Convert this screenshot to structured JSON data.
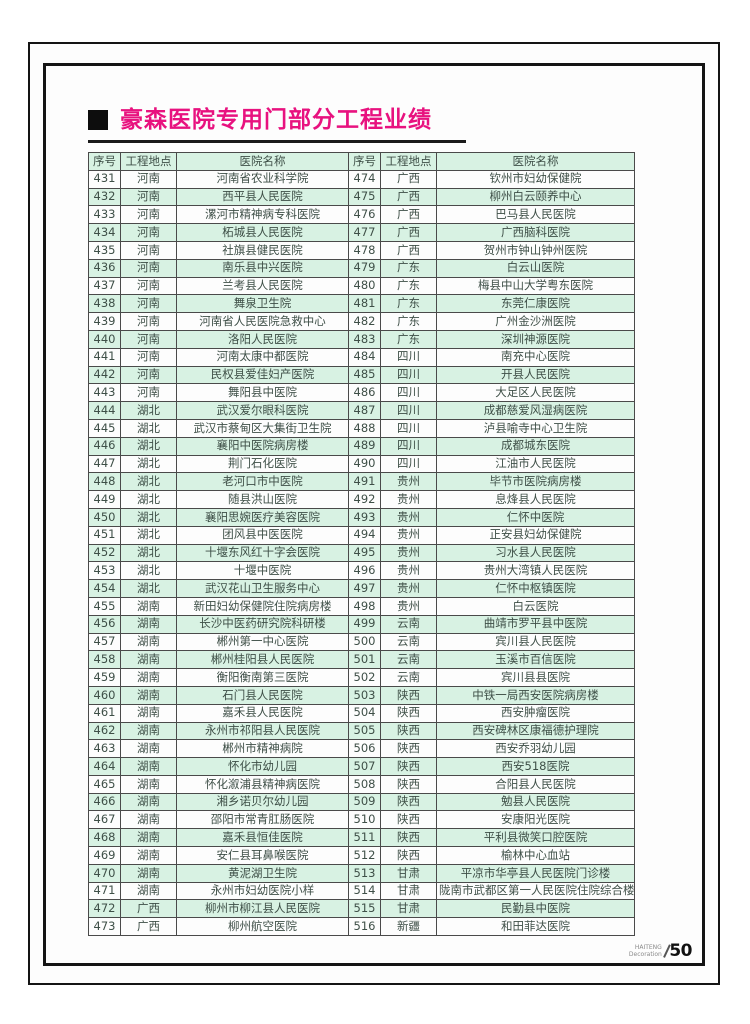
{
  "title": "豪森医院专用门部分工程业绩",
  "table": {
    "columns": {
      "serial": "序号",
      "location": "工程地点",
      "hospital": "医院名称"
    },
    "left_rows": [
      {
        "no": "431",
        "loc": "河南",
        "name": "河南省农业科学院"
      },
      {
        "no": "432",
        "loc": "河南",
        "name": "西平县人民医院"
      },
      {
        "no": "433",
        "loc": "河南",
        "name": "漯河市精神病专科医院"
      },
      {
        "no": "434",
        "loc": "河南",
        "name": "柘城县人民医院"
      },
      {
        "no": "435",
        "loc": "河南",
        "name": "社旗县健民医院"
      },
      {
        "no": "436",
        "loc": "河南",
        "name": "南乐县中兴医院"
      },
      {
        "no": "437",
        "loc": "河南",
        "name": "兰考县人民医院"
      },
      {
        "no": "438",
        "loc": "河南",
        "name": "舞泉卫生院"
      },
      {
        "no": "439",
        "loc": "河南",
        "name": "河南省人民医院急救中心"
      },
      {
        "no": "440",
        "loc": "河南",
        "name": "洛阳人民医院"
      },
      {
        "no": "441",
        "loc": "河南",
        "name": "河南太康中都医院"
      },
      {
        "no": "442",
        "loc": "河南",
        "name": "民权县爱佳妇产医院"
      },
      {
        "no": "443",
        "loc": "河南",
        "name": "舞阳县中医院"
      },
      {
        "no": "444",
        "loc": "湖北",
        "name": "武汉爱尔眼科医院"
      },
      {
        "no": "445",
        "loc": "湖北",
        "name": "武汉市蔡甸区大集街卫生院"
      },
      {
        "no": "446",
        "loc": "湖北",
        "name": "襄阳中医院病房楼"
      },
      {
        "no": "447",
        "loc": "湖北",
        "name": "荆门石化医院"
      },
      {
        "no": "448",
        "loc": "湖北",
        "name": "老河口市中医院"
      },
      {
        "no": "449",
        "loc": "湖北",
        "name": "随县洪山医院"
      },
      {
        "no": "450",
        "loc": "湖北",
        "name": "襄阳思婉医疗美容医院"
      },
      {
        "no": "451",
        "loc": "湖北",
        "name": "团风县中医医院"
      },
      {
        "no": "452",
        "loc": "湖北",
        "name": "十堰东风红十字会医院"
      },
      {
        "no": "453",
        "loc": "湖北",
        "name": "十堰中医院"
      },
      {
        "no": "454",
        "loc": "湖北",
        "name": "武汉花山卫生服务中心"
      },
      {
        "no": "455",
        "loc": "湖南",
        "name": "新田妇幼保健院住院病房楼"
      },
      {
        "no": "456",
        "loc": "湖南",
        "name": "长沙中医药研究院科研楼"
      },
      {
        "no": "457",
        "loc": "湖南",
        "name": "郴州第一中心医院"
      },
      {
        "no": "458",
        "loc": "湖南",
        "name": "郴州桂阳县人民医院"
      },
      {
        "no": "459",
        "loc": "湖南",
        "name": "衡阳衡南第三医院"
      },
      {
        "no": "460",
        "loc": "湖南",
        "name": "石门县人民医院"
      },
      {
        "no": "461",
        "loc": "湖南",
        "name": "嘉禾县人民医院"
      },
      {
        "no": "462",
        "loc": "湖南",
        "name": "永州市祁阳县人民医院"
      },
      {
        "no": "463",
        "loc": "湖南",
        "name": "郴州市精神病院"
      },
      {
        "no": "464",
        "loc": "湖南",
        "name": "怀化市幼儿园"
      },
      {
        "no": "465",
        "loc": "湖南",
        "name": "怀化溆浦县精神病医院"
      },
      {
        "no": "466",
        "loc": "湖南",
        "name": "湘乡诺贝尔幼儿园"
      },
      {
        "no": "467",
        "loc": "湖南",
        "name": "邵阳市常青肛肠医院"
      },
      {
        "no": "468",
        "loc": "湖南",
        "name": "嘉禾县恒佳医院"
      },
      {
        "no": "469",
        "loc": "湖南",
        "name": "安仁县耳鼻喉医院"
      },
      {
        "no": "470",
        "loc": "湖南",
        "name": "黄泥湖卫生院"
      },
      {
        "no": "471",
        "loc": "湖南",
        "name": "永州市妇幼医院小样"
      },
      {
        "no": "472",
        "loc": "广西",
        "name": "柳州市柳江县人民医院"
      },
      {
        "no": "473",
        "loc": "广西",
        "name": "柳州航空医院"
      }
    ],
    "right_rows": [
      {
        "no": "474",
        "loc": "广西",
        "name": "钦州市妇幼保健院"
      },
      {
        "no": "475",
        "loc": "广西",
        "name": "柳州白云颐养中心"
      },
      {
        "no": "476",
        "loc": "广西",
        "name": "巴马县人民医院"
      },
      {
        "no": "477",
        "loc": "广西",
        "name": "广西脑科医院"
      },
      {
        "no": "478",
        "loc": "广西",
        "name": "贺州市钟山钟州医院"
      },
      {
        "no": "479",
        "loc": "广东",
        "name": "白云山医院"
      },
      {
        "no": "480",
        "loc": "广东",
        "name": "梅县中山大学粤东医院"
      },
      {
        "no": "481",
        "loc": "广东",
        "name": "东莞仁康医院"
      },
      {
        "no": "482",
        "loc": "广东",
        "name": "广州金沙洲医院"
      },
      {
        "no": "483",
        "loc": "广东",
        "name": "深圳神源医院"
      },
      {
        "no": "484",
        "loc": "四川",
        "name": "南充中心医院"
      },
      {
        "no": "485",
        "loc": "四川",
        "name": "开县人民医院"
      },
      {
        "no": "486",
        "loc": "四川",
        "name": "大足区人民医院"
      },
      {
        "no": "487",
        "loc": "四川",
        "name": "成都慈爱风湿病医院"
      },
      {
        "no": "488",
        "loc": "四川",
        "name": "泸县喻寺中心卫生院"
      },
      {
        "no": "489",
        "loc": "四川",
        "name": "成都城东医院"
      },
      {
        "no": "490",
        "loc": "四川",
        "name": "江油市人民医院"
      },
      {
        "no": "491",
        "loc": "贵州",
        "name": "毕节市医院病房楼"
      },
      {
        "no": "492",
        "loc": "贵州",
        "name": "息烽县人民医院"
      },
      {
        "no": "493",
        "loc": "贵州",
        "name": "仁怀中医院"
      },
      {
        "no": "494",
        "loc": "贵州",
        "name": "正安县妇幼保健院"
      },
      {
        "no": "495",
        "loc": "贵州",
        "name": "习水县人民医院"
      },
      {
        "no": "496",
        "loc": "贵州",
        "name": "贵州大湾镇人民医院"
      },
      {
        "no": "497",
        "loc": "贵州",
        "name": "仁怀中枢镇医院"
      },
      {
        "no": "498",
        "loc": "贵州",
        "name": "白云医院"
      },
      {
        "no": "499",
        "loc": "云南",
        "name": "曲靖市罗平县中医院"
      },
      {
        "no": "500",
        "loc": "云南",
        "name": "宾川县人民医院"
      },
      {
        "no": "501",
        "loc": "云南",
        "name": "玉溪市百信医院"
      },
      {
        "no": "502",
        "loc": "云南",
        "name": "宾川县县医院"
      },
      {
        "no": "503",
        "loc": "陕西",
        "name": "中铁一局西安医院病房楼"
      },
      {
        "no": "504",
        "loc": "陕西",
        "name": "西安肿瘤医院"
      },
      {
        "no": "505",
        "loc": "陕西",
        "name": "西安碑林区康福德护理院"
      },
      {
        "no": "506",
        "loc": "陕西",
        "name": "西安乔羽幼儿园"
      },
      {
        "no": "507",
        "loc": "陕西",
        "name": "西安518医院"
      },
      {
        "no": "508",
        "loc": "陕西",
        "name": "合阳县人民医院"
      },
      {
        "no": "509",
        "loc": "陕西",
        "name": "勉县人民医院"
      },
      {
        "no": "510",
        "loc": "陕西",
        "name": "安康阳光医院"
      },
      {
        "no": "511",
        "loc": "陕西",
        "name": "平利县微笑口腔医院"
      },
      {
        "no": "512",
        "loc": "陕西",
        "name": "榆林中心血站"
      },
      {
        "no": "513",
        "loc": "甘肃",
        "name": "平凉市华亭县人民医院门诊楼"
      },
      {
        "no": "514",
        "loc": "甘肃",
        "name": "陇南市武都区第一人民医院住院综合楼"
      },
      {
        "no": "515",
        "loc": "甘肃",
        "name": "民勤县中医院"
      },
      {
        "no": "516",
        "loc": "新疆",
        "name": "和田菲达医院"
      }
    ]
  },
  "footer": {
    "brand_line1": "HAITENG",
    "brand_line2": "Decoration",
    "page_number": "50"
  },
  "colors": {
    "title_accent": "#e8127f",
    "row_green": "#d8f2e3",
    "frame_black": "#141414"
  }
}
